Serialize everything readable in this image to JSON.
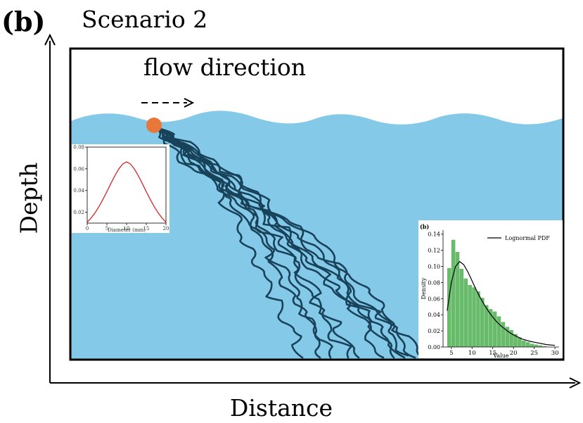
{
  "panel_tag": "(b)",
  "scenario_title": "Scenario 2",
  "flow_label": "flow direction",
  "axes": {
    "y_label": "Depth",
    "x_label": "Distance"
  },
  "colors": {
    "water": "#85c9e8",
    "particle": "#e8773a",
    "trajectory": "#17425a",
    "pdf_curve": "#d62728",
    "histogram": "#4caf50"
  },
  "chart_data": [
    {
      "type": "line",
      "title": "",
      "xlabel": "Diameter (mm)",
      "ylabel": "",
      "xlim": [
        0,
        20
      ],
      "ylim": [
        0.01,
        0.08
      ],
      "xticks": [
        "0",
        "5",
        "10",
        "15",
        "20"
      ],
      "yticks": [
        "0.02",
        "0.04",
        "0.06",
        "0.08"
      ],
      "grid": false,
      "x": [
        0,
        1,
        2,
        3,
        4,
        5,
        6,
        7,
        8,
        9,
        10,
        11,
        12,
        13,
        14,
        15,
        16,
        17,
        18,
        19,
        20
      ],
      "y": [
        0.0108,
        0.0147,
        0.0195,
        0.0253,
        0.0319,
        0.039,
        0.0464,
        0.0535,
        0.0597,
        0.0644,
        0.0664,
        0.0644,
        0.0597,
        0.0535,
        0.0464,
        0.039,
        0.0319,
        0.0253,
        0.0195,
        0.0147,
        0.0108
      ]
    },
    {
      "type": "bar",
      "title": "(b)",
      "xlabel": "Value",
      "ylabel": "Density",
      "xlim": [
        3,
        31
      ],
      "ylim": [
        0,
        0.145
      ],
      "xticks": [
        "5",
        "10",
        "15",
        "20",
        "25",
        "30"
      ],
      "yticks": [
        "0.00",
        "0.02",
        "0.04",
        "0.06",
        "0.08",
        "0.10",
        "0.12",
        "0.14"
      ],
      "grid": false,
      "legend": {
        "position": "top-right",
        "entries": [
          "Lognormal PDF"
        ]
      },
      "bin_width": 1,
      "bin_starts": [
        4,
        5,
        6,
        7,
        8,
        9,
        10,
        11,
        12,
        13,
        14,
        15,
        16,
        17,
        18,
        19,
        20,
        21,
        22,
        23,
        24,
        25,
        26,
        27
      ],
      "values": [
        0.098,
        0.133,
        0.118,
        0.097,
        0.085,
        0.077,
        0.074,
        0.069,
        0.061,
        0.052,
        0.047,
        0.044,
        0.038,
        0.031,
        0.025,
        0.021,
        0.016,
        0.012,
        0.008,
        0.006,
        0.004,
        0.003,
        0.002,
        0.001
      ],
      "series": [
        {
          "name": "Lognormal PDF",
          "x": [
            4,
            5,
            6,
            7,
            8,
            9,
            10,
            11,
            12,
            13,
            14,
            15,
            16,
            17,
            18,
            19,
            20,
            22,
            24,
            26,
            28,
            30
          ],
          "y": [
            0.045,
            0.08,
            0.1,
            0.106,
            0.102,
            0.093,
            0.082,
            0.071,
            0.061,
            0.052,
            0.044,
            0.037,
            0.031,
            0.026,
            0.022,
            0.018,
            0.015,
            0.01,
            0.007,
            0.005,
            0.003,
            0.002
          ]
        }
      ]
    }
  ]
}
